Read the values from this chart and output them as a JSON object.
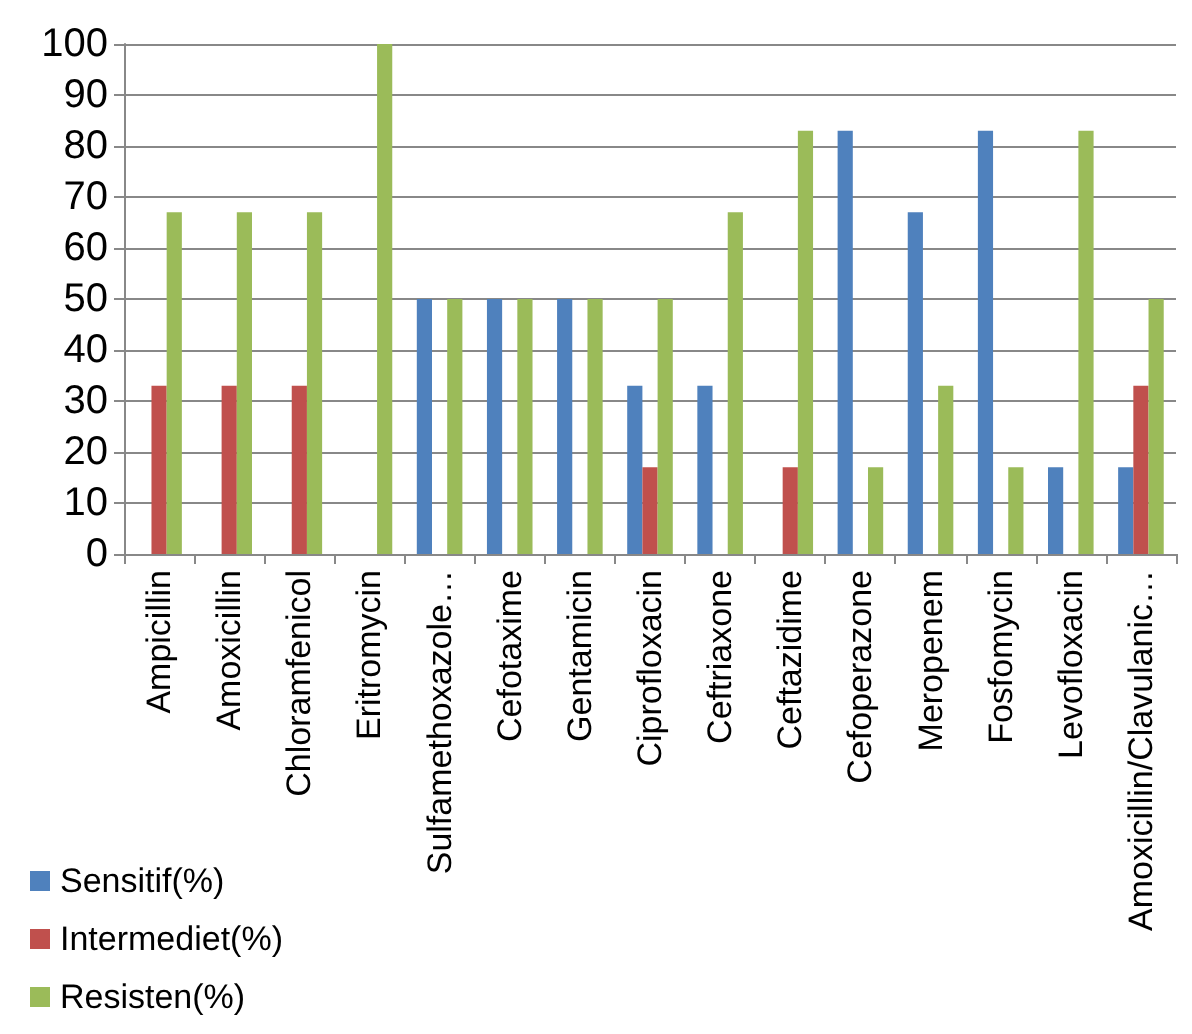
{
  "chart_data": {
    "type": "bar",
    "categories": [
      "Ampicillin",
      "Amoxicillin",
      "Chloramfenicol",
      "Eritromycin",
      "Sulfamethoxazole…",
      "Cefotaxime",
      "Gentamicin",
      "Ciprofloxacin",
      "Ceftriaxone",
      "Ceftazidime",
      "Cefoperazone",
      "Meropenem",
      "Fosfomycin",
      "Levofloxacin",
      "Amoxicillin/Clavulanic…"
    ],
    "series": [
      {
        "name": "Sensitif(%)",
        "color": "#4f81bd",
        "values": [
          0,
          0,
          0,
          0,
          50,
          50,
          50,
          33,
          33,
          0,
          83,
          67,
          83,
          17,
          17
        ]
      },
      {
        "name": "Intermediet(%)",
        "color": "#c0504d",
        "values": [
          33,
          33,
          33,
          0,
          0,
          0,
          0,
          17,
          0,
          17,
          0,
          0,
          0,
          0,
          33
        ]
      },
      {
        "name": "Resisten(%)",
        "color": "#9bbb59",
        "values": [
          67,
          67,
          67,
          100,
          50,
          50,
          50,
          50,
          67,
          83,
          17,
          33,
          17,
          83,
          50
        ]
      }
    ],
    "ylim": [
      0,
      100
    ],
    "yticks": [
      0,
      10,
      20,
      30,
      40,
      50,
      60,
      70,
      80,
      90,
      100
    ],
    "grid": "y",
    "legend": "bottom left"
  }
}
